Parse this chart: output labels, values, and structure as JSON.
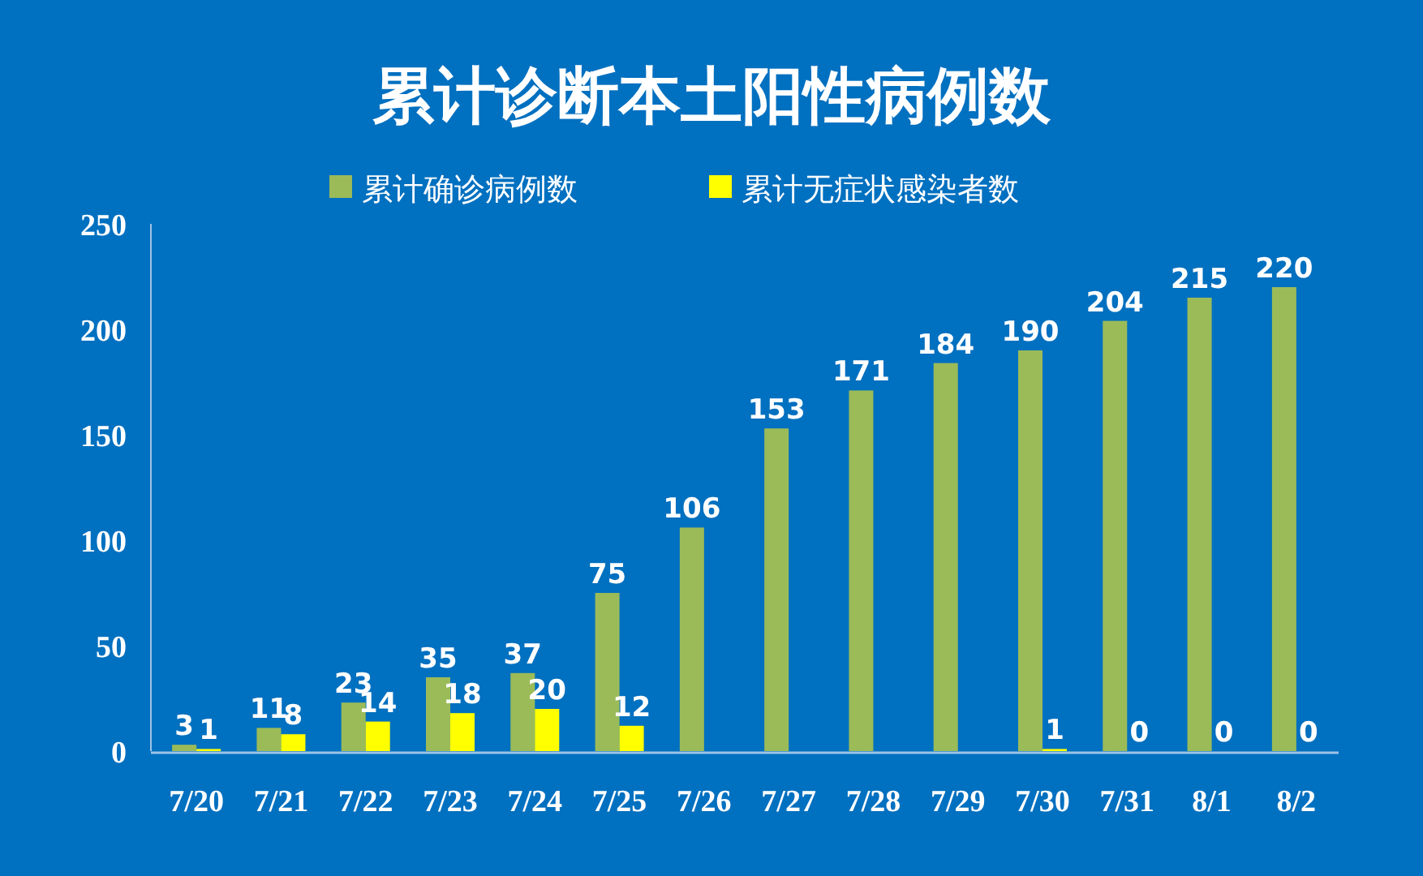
{
  "chart_data": {
    "type": "bar",
    "title": "累计诊断本土阳性病例数",
    "categories": [
      "7/20",
      "7/21",
      "7/22",
      "7/23",
      "7/24",
      "7/25",
      "7/26",
      "7/27",
      "7/28",
      "7/29",
      "7/30",
      "7/31",
      "8/1",
      "8/2"
    ],
    "series": [
      {
        "name": "累计确诊病例数",
        "color": "#9bbb59",
        "values": [
          3,
          11,
          23,
          35,
          37,
          75,
          106,
          153,
          171,
          184,
          190,
          204,
          215,
          220
        ]
      },
      {
        "name": "累计无症状感染者数",
        "color": "#ffff00",
        "values": [
          1,
          8,
          14,
          18,
          20,
          12,
          null,
          null,
          null,
          null,
          1,
          0,
          0,
          0
        ]
      }
    ],
    "ylim": [
      0,
      250
    ],
    "yticks": [
      0,
      50,
      100,
      150,
      200,
      250
    ],
    "data_labels": true,
    "legend": "top",
    "grid": false
  }
}
